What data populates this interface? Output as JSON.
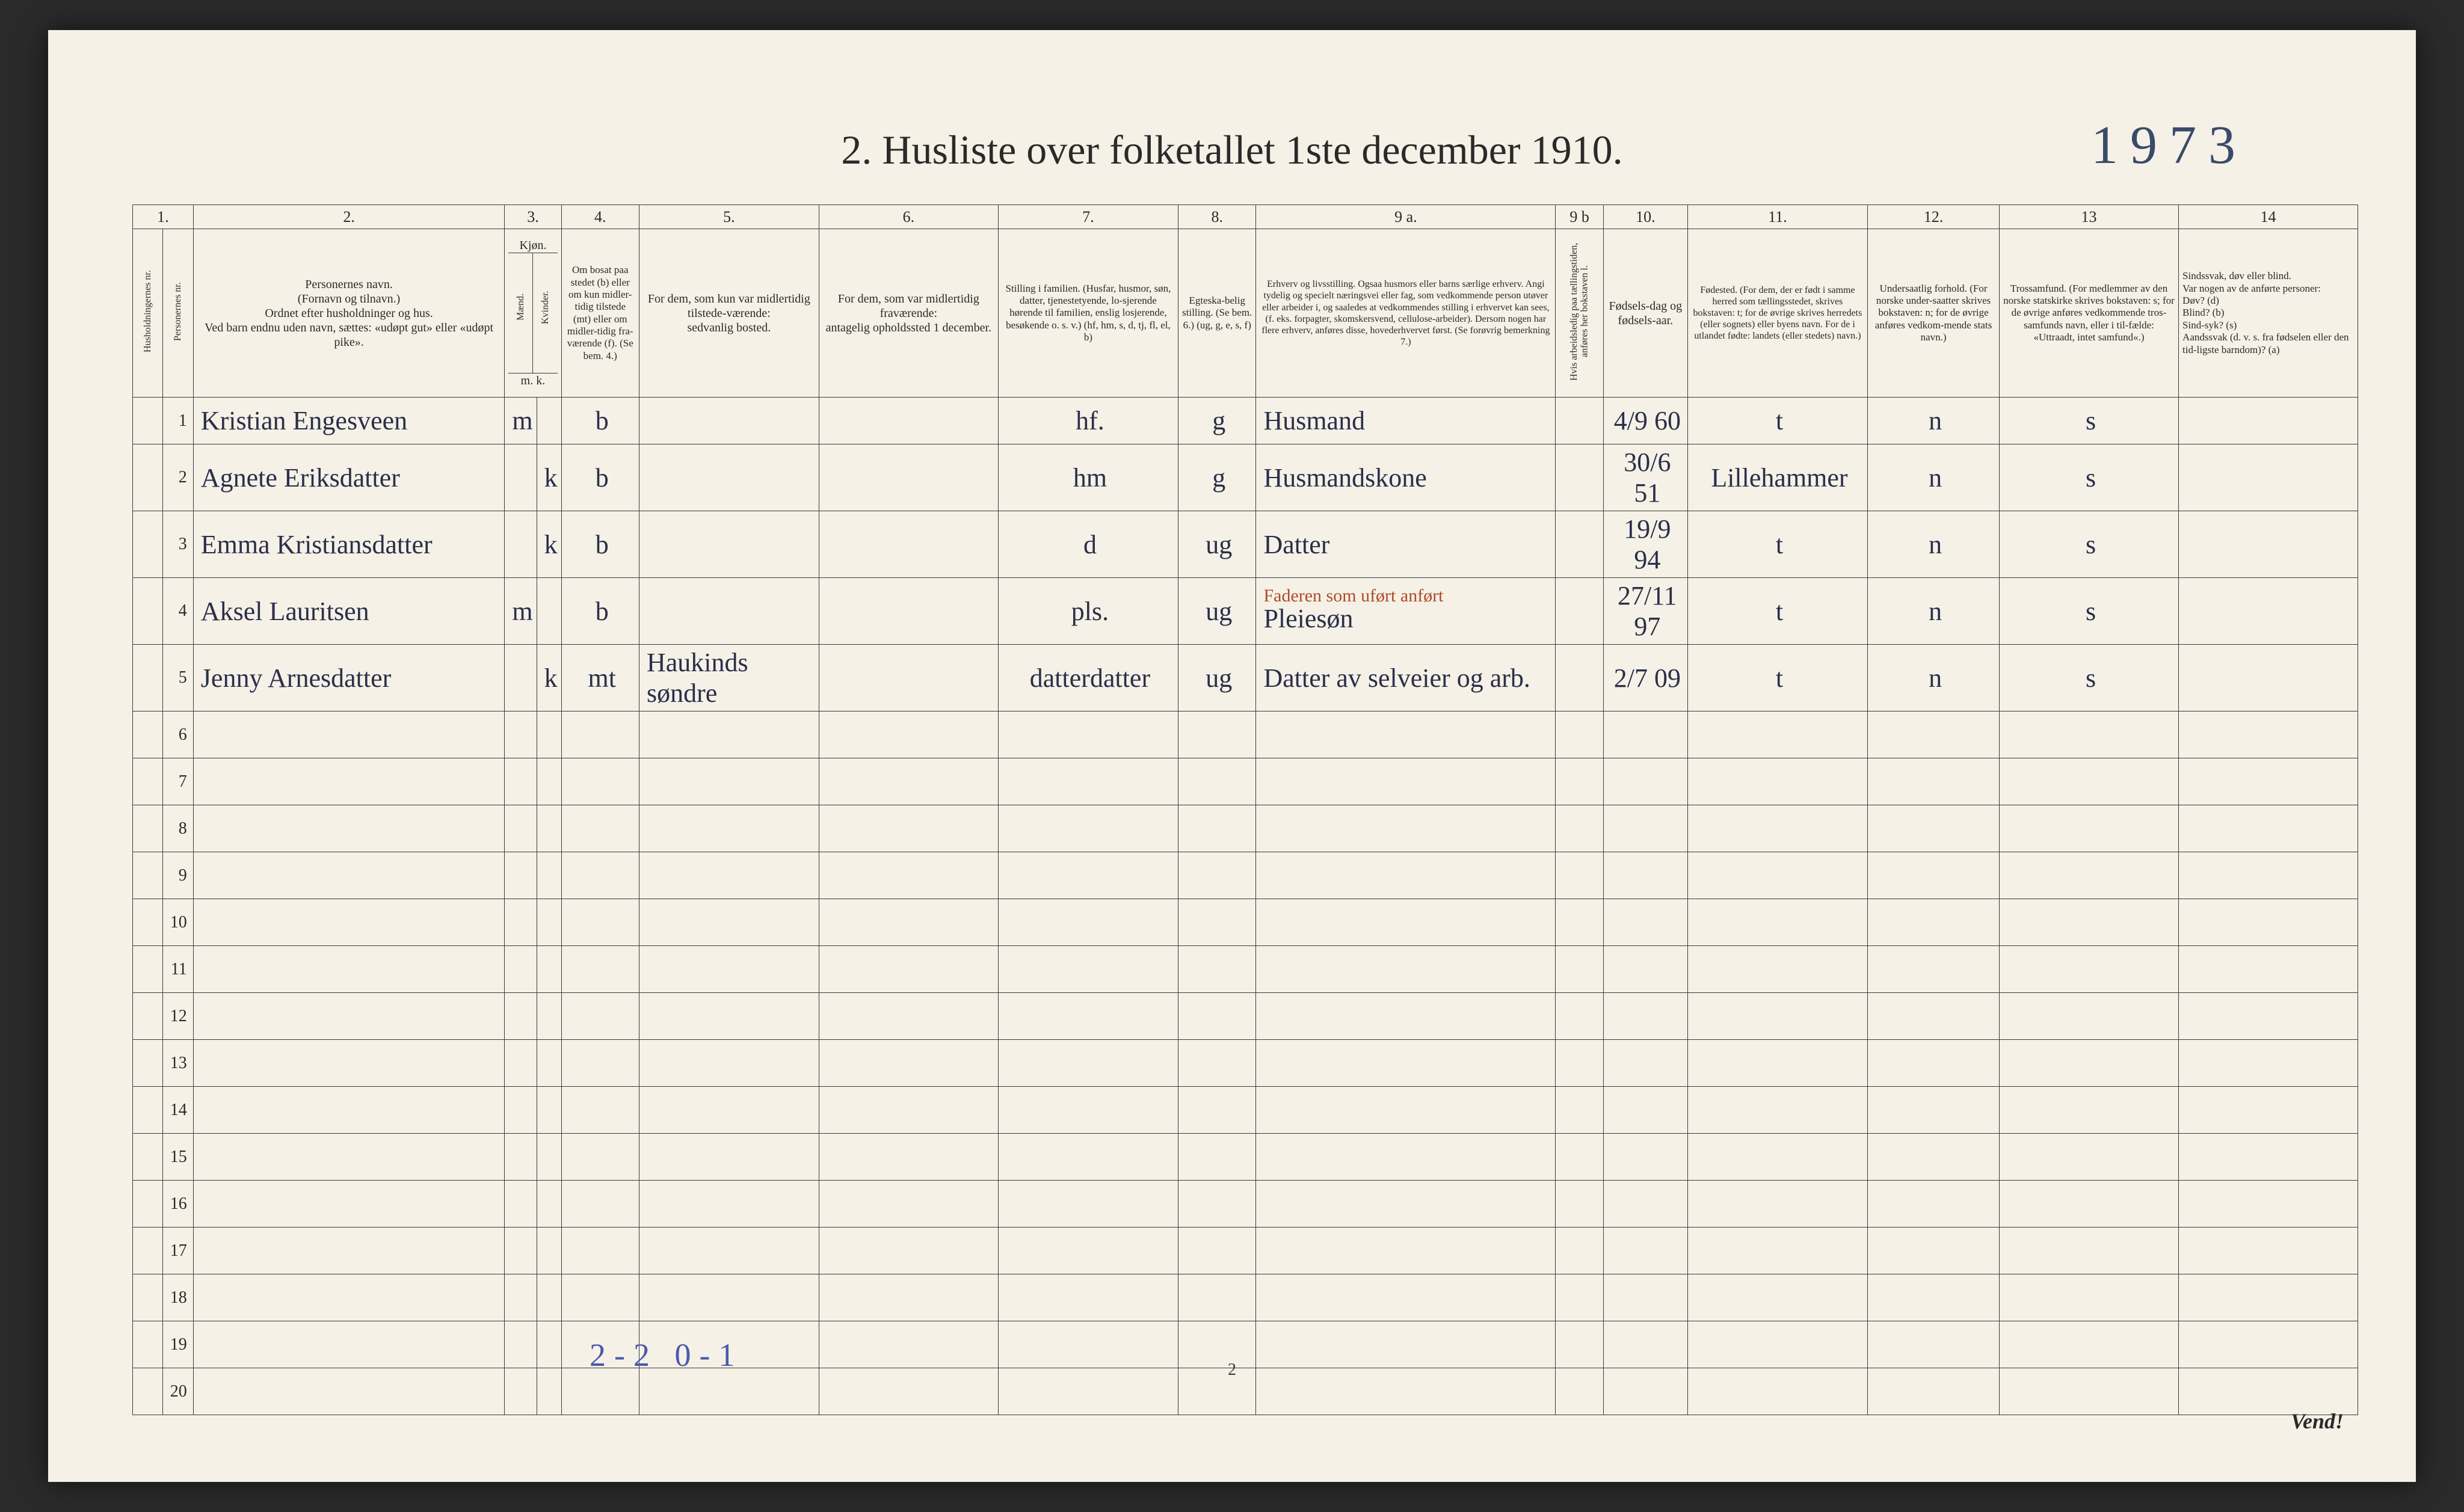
{
  "page": {
    "title": "2.  Husliste over folketallet 1ste december 1910.",
    "handwritten_top": "1973",
    "bottom_note": "2-2  0-1",
    "page_number": "2",
    "vend": "Vend!",
    "colors": {
      "paper": "#f5f1e6",
      "ink": "#2a2a2a",
      "handwriting": "#2a2f4a",
      "red_ink": "#b04a2a",
      "pencil": "#4a5aaa",
      "border": "#3a3a3a"
    }
  },
  "colnums": [
    "1.",
    "2.",
    "3.",
    "4.",
    "5.",
    "6.",
    "7.",
    "8.",
    "9 a.",
    "9 b",
    "10.",
    "11.",
    "12.",
    "13",
    "14"
  ],
  "headers": {
    "h1": "Husholdningernes nr.",
    "h2": "Personernes nr.",
    "h3": "Personernes navn.\n(Fornavn og tilnavn.)\nOrdnet efter husholdninger og hus.\nVed barn endnu uden navn, sættes: «udøpt gut» eller «udøpt pike».",
    "h4": "Kjøn.",
    "h4a": "Mænd.",
    "h4b": "Kvinder.",
    "h4sub": "m.  k.",
    "h5": "Om bosat paa stedet (b) eller om kun midler-tidig tilstede (mt) eller om midler-tidig fra-værende (f). (Se bem. 4.)",
    "h6": "For dem, som kun var midlertidig tilstede-værende:\nsedvanlig bosted.",
    "h7": "For dem, som var midlertidig fraværende:\nantagelig opholdssted 1 december.",
    "h8": "Stilling i familien.\n(Husfar, husmor, søn, datter, tjenestetyende, lo-sjerende hørende til familien, enslig losjerende, besøkende o. s. v.)\n(hf, hm, s, d, tj, fl, el, b)",
    "h9": "Egteska-belig stilling.\n(Se bem. 6.)\n(ug, g, e, s, f)",
    "h10": "Erhverv og livsstilling.\nOgsaa husmors eller barns særlige erhverv.\nAngi tydelig og specielt næringsvei eller fag, som vedkommende person utøver eller arbeider i, og saaledes at vedkommendes stilling i erhvervet kan sees, (f. eks. forpagter, skomskersvend, cellulose-arbeider). Dersom nogen har flere erhverv, anføres disse, hovederhvervet først.\n(Se forøvrig bemerkning 7.)",
    "h11": "Hvis arbeidsledig paa tællingstiden, anføres her bokstaven l.",
    "h12": "Fødsels-dag og fødsels-aar.",
    "h13": "Fødested.\n(For dem, der er født i samme herred som tællingsstedet, skrives bokstaven: t; for de øvrige skrives herredets (eller sognets) eller byens navn.\nFor de i utlandet fødte: landets (eller stedets) navn.)",
    "h14": "Undersaatlig forhold.\n(For norske under-saatter skrives bokstaven: n; for de øvrige anføres vedkom-mende stats navn.)",
    "h15": "Trossamfund.\n(For medlemmer av den norske statskirke skrives bokstaven: s; for de øvrige anføres vedkommende tros-samfunds navn, eller i til-fælde: «Uttraadt, intet samfund«.)",
    "h16": "Sindssvak, døv eller blind.\nVar nogen av de anførte personer:\nDøv?        (d)\nBlind?      (b)\nSind-syk? (s)\nAandssvak (d. v. s. fra fødselen eller den tid-ligste barndom)? (a)"
  },
  "rows": [
    {
      "n": "1",
      "name": "Kristian Engesveen",
      "mk": "m",
      "k": "",
      "res": "b",
      "temp": "",
      "away": "",
      "fam": "hf.",
      "civ": "g",
      "occ": "Husmand",
      "occ_red": "",
      "led": "",
      "birth": "4/9 60",
      "place": "t",
      "nat": "n",
      "rel": "s",
      "dis": ""
    },
    {
      "n": "2",
      "name": "Agnete Eriksdatter",
      "mk": "",
      "k": "k",
      "res": "b",
      "temp": "",
      "away": "",
      "fam": "hm",
      "civ": "g",
      "occ": "Husmandskone",
      "occ_red": "",
      "led": "",
      "birth": "30/6 51",
      "place": "Lillehammer",
      "nat": "n",
      "rel": "s",
      "dis": ""
    },
    {
      "n": "3",
      "name": "Emma Kristiansdatter",
      "mk": "",
      "k": "k",
      "res": "b",
      "temp": "",
      "away": "",
      "fam": "d",
      "civ": "ug",
      "occ": "Datter",
      "occ_red": "",
      "led": "",
      "birth": "19/9 94",
      "place": "t",
      "nat": "n",
      "rel": "s",
      "dis": ""
    },
    {
      "n": "4",
      "name": "Aksel Lauritsen",
      "mk": "m",
      "k": "",
      "res": "b",
      "temp": "",
      "away": "",
      "fam": "pls.",
      "civ": "ug",
      "occ": "Pleiesøn",
      "occ_red": "Faderen som uført anført",
      "led": "",
      "birth": "27/11 97",
      "place": "t",
      "nat": "n",
      "rel": "s",
      "dis": ""
    },
    {
      "n": "5",
      "name": "Jenny Arnesdatter",
      "mk": "",
      "k": "k",
      "res": "mt",
      "temp": "Haukinds søndre",
      "away": "",
      "fam": "datterdatter",
      "civ": "ug",
      "occ": "Datter av selveier og arb.",
      "occ_red": "",
      "led": "",
      "birth": "2/7 09",
      "place": "t",
      "nat": "n",
      "rel": "s",
      "dis": ""
    }
  ],
  "empty_rows": [
    "6",
    "7",
    "8",
    "9",
    "10",
    "11",
    "12",
    "13",
    "14",
    "15",
    "16",
    "17",
    "18",
    "19",
    "20"
  ]
}
